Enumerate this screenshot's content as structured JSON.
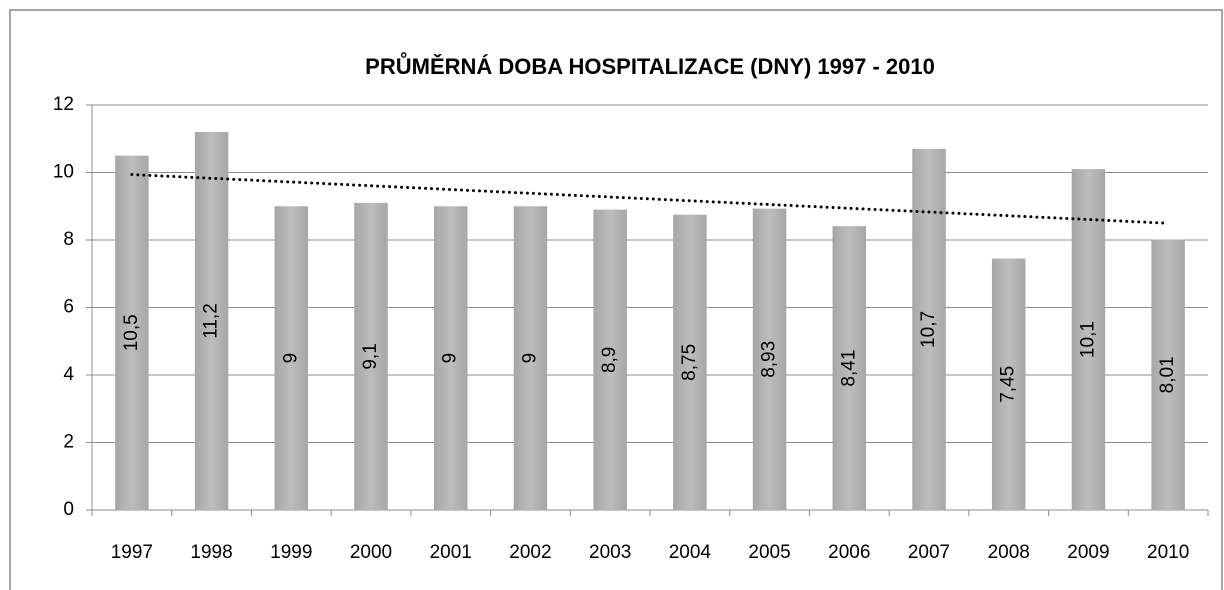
{
  "chart_data": {
    "type": "bar",
    "title": "PRŮMĚRNÁ DOBA HOSPITALIZACE (DNY) 1997 - 2010",
    "categories": [
      "1997",
      "1998",
      "1999",
      "2000",
      "2001",
      "2002",
      "2003",
      "2004",
      "2005",
      "2006",
      "2007",
      "2008",
      "2009",
      "2010"
    ],
    "values": [
      10.5,
      11.2,
      9,
      9.1,
      9,
      9,
      8.9,
      8.75,
      8.93,
      8.41,
      10.7,
      7.45,
      10.1,
      8.01
    ],
    "value_labels": [
      "10,5",
      "11,2",
      "9",
      "9,1",
      "9",
      "9",
      "8,9",
      "8,75",
      "8,93",
      "8,41",
      "10,7",
      "7,45",
      "10,1",
      "8,01"
    ],
    "color": "#b3b3b3",
    "ylim": [
      0,
      12
    ],
    "yticks": [
      0,
      2,
      4,
      6,
      8,
      10,
      12
    ],
    "grid": true,
    "trendline": "linear"
  }
}
